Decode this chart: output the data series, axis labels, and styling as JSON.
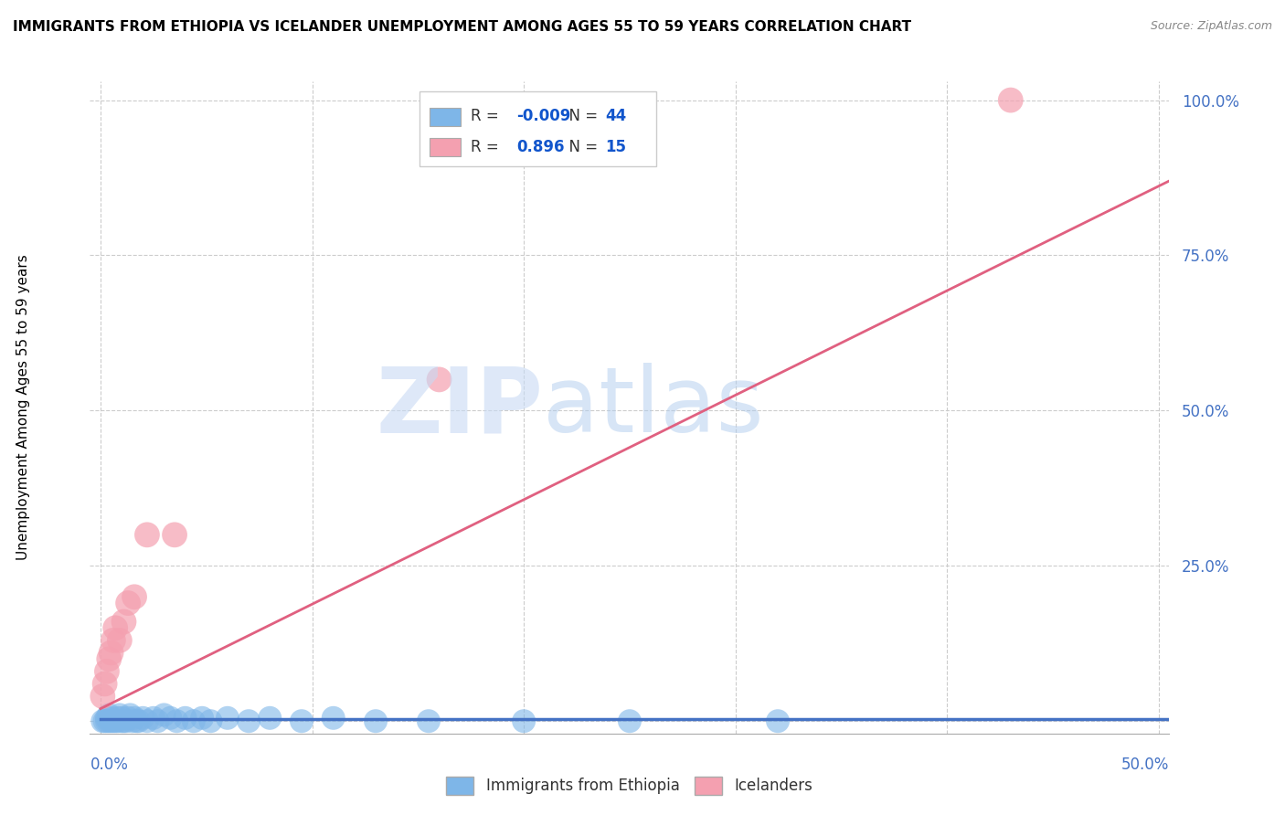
{
  "title": "IMMIGRANTS FROM ETHIOPIA VS ICELANDER UNEMPLOYMENT AMONG AGES 55 TO 59 YEARS CORRELATION CHART",
  "source": "Source: ZipAtlas.com",
  "ylabel": "Unemployment Among Ages 55 to 59 years",
  "xlim": [
    -0.005,
    0.505
  ],
  "ylim": [
    -0.02,
    1.03
  ],
  "ytick_vals": [
    0.0,
    0.25,
    0.5,
    0.75,
    1.0
  ],
  "ytick_labels": [
    "",
    "25.0%",
    "50.0%",
    "75.0%",
    "100.0%"
  ],
  "xtick_bottom_labels": [
    "0.0%",
    "50.0%"
  ],
  "xtick_bottom_vals": [
    0.0,
    0.5
  ],
  "background_color": "#ffffff",
  "grid_color": "#cccccc",
  "blue_R": "-0.009",
  "blue_N": "44",
  "pink_R": "0.896",
  "pink_N": "15",
  "blue_color": "#7eb6e8",
  "pink_color": "#f4a0b0",
  "blue_line_color": "#4472c4",
  "pink_line_color": "#e06080",
  "legend_label_blue": "Immigrants from Ethiopia",
  "legend_label_pink": "Icelanders",
  "blue_points_x": [
    0.001,
    0.002,
    0.003,
    0.003,
    0.004,
    0.004,
    0.005,
    0.005,
    0.006,
    0.007,
    0.008,
    0.008,
    0.009,
    0.01,
    0.01,
    0.011,
    0.012,
    0.013,
    0.014,
    0.015,
    0.016,
    0.017,
    0.018,
    0.02,
    0.022,
    0.025,
    0.027,
    0.03,
    0.033,
    0.036,
    0.04,
    0.044,
    0.048,
    0.052,
    0.06,
    0.07,
    0.08,
    0.095,
    0.11,
    0.13,
    0.155,
    0.2,
    0.25,
    0.32
  ],
  "blue_points_y": [
    0.0,
    0.0,
    0.005,
    0.0,
    0.01,
    0.0,
    0.0,
    0.005,
    0.0,
    0.0,
    0.005,
    0.0,
    0.01,
    0.0,
    0.005,
    0.0,
    0.0,
    0.005,
    0.01,
    0.0,
    0.005,
    0.0,
    0.0,
    0.005,
    0.0,
    0.005,
    0.0,
    0.01,
    0.005,
    0.0,
    0.005,
    0.0,
    0.005,
    0.0,
    0.005,
    0.0,
    0.005,
    0.0,
    0.005,
    0.0,
    0.0,
    0.0,
    0.0,
    0.0
  ],
  "pink_points_x": [
    0.001,
    0.002,
    0.003,
    0.004,
    0.005,
    0.006,
    0.007,
    0.009,
    0.011,
    0.013,
    0.016,
    0.022,
    0.035,
    0.16,
    0.43
  ],
  "pink_points_y": [
    0.04,
    0.06,
    0.08,
    0.1,
    0.11,
    0.13,
    0.15,
    0.13,
    0.16,
    0.19,
    0.2,
    0.3,
    0.3,
    0.55,
    1.0
  ],
  "blue_trend_x": [
    0.0,
    0.505
  ],
  "blue_trend_y": [
    0.003,
    0.003
  ],
  "pink_trend_x": [
    0.0,
    0.505
  ],
  "pink_trend_y": [
    0.02,
    0.87
  ]
}
